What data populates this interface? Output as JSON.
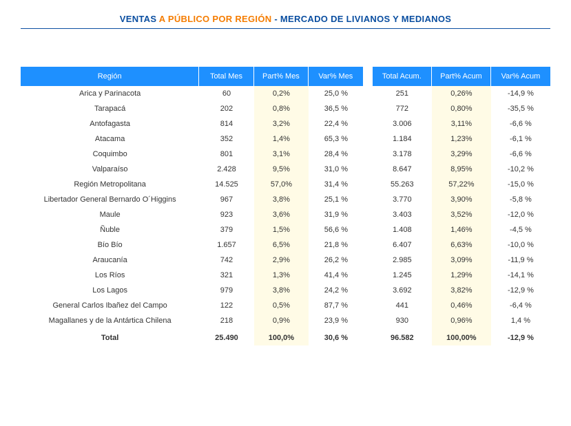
{
  "title": {
    "prefix": "VENTAS ",
    "highlight": "A PÚBLICO POR REGIÓN",
    "sep": " - ",
    "suffix": "MERCADO DE LIVIANOS Y MEDIANOS"
  },
  "colors": {
    "blue": "#0a4ea0",
    "orange": "#f57c00",
    "header_bg": "#1e90ff",
    "highlight_bg": "#fffbe6"
  },
  "table": {
    "headers": {
      "region": "Región",
      "total_mes": "Total Mes",
      "part_mes": "Part% Mes",
      "var_mes": "Var% Mes",
      "total_acum": "Total Acum.",
      "part_acum": "Part% Acum",
      "var_acum": "Var% Acum"
    },
    "rows": [
      {
        "region": "Arica y Parinacota",
        "total_mes": "60",
        "part_mes": "0,2%",
        "var_mes": "25,0 %",
        "total_acum": "251",
        "part_acum": "0,26%",
        "var_acum": "-14,9 %"
      },
      {
        "region": "Tarapacá",
        "total_mes": "202",
        "part_mes": "0,8%",
        "var_mes": "36,5 %",
        "total_acum": "772",
        "part_acum": "0,80%",
        "var_acum": "-35,5 %"
      },
      {
        "region": "Antofagasta",
        "total_mes": "814",
        "part_mes": "3,2%",
        "var_mes": "22,4 %",
        "total_acum": "3.006",
        "part_acum": "3,11%",
        "var_acum": "-6,6 %"
      },
      {
        "region": "Atacama",
        "total_mes": "352",
        "part_mes": "1,4%",
        "var_mes": "65,3 %",
        "total_acum": "1.184",
        "part_acum": "1,23%",
        "var_acum": "-6,1 %"
      },
      {
        "region": "Coquimbo",
        "total_mes": "801",
        "part_mes": "3,1%",
        "var_mes": "28,4 %",
        "total_acum": "3.178",
        "part_acum": "3,29%",
        "var_acum": "-6,6 %"
      },
      {
        "region": "Valparaíso",
        "total_mes": "2.428",
        "part_mes": "9,5%",
        "var_mes": "31,0 %",
        "total_acum": "8.647",
        "part_acum": "8,95%",
        "var_acum": "-10,2 %"
      },
      {
        "region": "Región Metropolitana",
        "total_mes": "14.525",
        "part_mes": "57,0%",
        "var_mes": "31,4 %",
        "total_acum": "55.263",
        "part_acum": "57,22%",
        "var_acum": "-15,0 %"
      },
      {
        "region": "Libertador General Bernardo O´Higgins",
        "total_mes": "967",
        "part_mes": "3,8%",
        "var_mes": "25,1 %",
        "total_acum": "3.770",
        "part_acum": "3,90%",
        "var_acum": "-5,8 %"
      },
      {
        "region": "Maule",
        "total_mes": "923",
        "part_mes": "3,6%",
        "var_mes": "31,9 %",
        "total_acum": "3.403",
        "part_acum": "3,52%",
        "var_acum": "-12,0 %"
      },
      {
        "region": "Ñuble",
        "total_mes": "379",
        "part_mes": "1,5%",
        "var_mes": "56,6 %",
        "total_acum": "1.408",
        "part_acum": "1,46%",
        "var_acum": "-4,5 %"
      },
      {
        "region": "Bío Bío",
        "total_mes": "1.657",
        "part_mes": "6,5%",
        "var_mes": "21,8 %",
        "total_acum": "6.407",
        "part_acum": "6,63%",
        "var_acum": "-10,0 %"
      },
      {
        "region": "Araucanía",
        "total_mes": "742",
        "part_mes": "2,9%",
        "var_mes": "26,2 %",
        "total_acum": "2.985",
        "part_acum": "3,09%",
        "var_acum": "-11,9 %"
      },
      {
        "region": "Los Ríos",
        "total_mes": "321",
        "part_mes": "1,3%",
        "var_mes": "41,4 %",
        "total_acum": "1.245",
        "part_acum": "1,29%",
        "var_acum": "-14,1 %"
      },
      {
        "region": "Los Lagos",
        "total_mes": "979",
        "part_mes": "3,8%",
        "var_mes": "24,2 %",
        "total_acum": "3.692",
        "part_acum": "3,82%",
        "var_acum": "-12,9 %"
      },
      {
        "region": "General Carlos Ibañez del Campo",
        "total_mes": "122",
        "part_mes": "0,5%",
        "var_mes": "87,7 %",
        "total_acum": "441",
        "part_acum": "0,46%",
        "var_acum": "-6,4 %"
      },
      {
        "region": "Magallanes y de la Antártica Chilena",
        "total_mes": "218",
        "part_mes": "0,9%",
        "var_mes": "23,9 %",
        "total_acum": "930",
        "part_acum": "0,96%",
        "var_acum": "1,4 %"
      }
    ],
    "total": {
      "region": "Total",
      "total_mes": "25.490",
      "part_mes": "100,0%",
      "var_mes": "30,6 %",
      "total_acum": "96.582",
      "part_acum": "100,00%",
      "var_acum": "-12,9 %"
    }
  }
}
